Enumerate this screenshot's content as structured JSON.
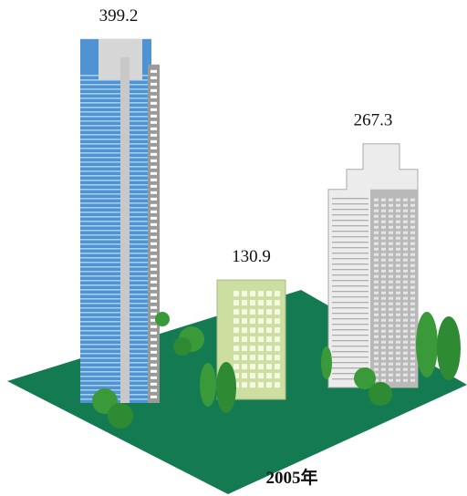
{
  "chart_data": {
    "type": "bar",
    "xlabel": "2005年",
    "categories": [
      null,
      null,
      null
    ],
    "values": [
      399.2,
      130.9,
      267.3
    ],
    "colors": [
      "#4f93d3",
      "#cddfa0",
      "#ececec"
    ]
  }
}
